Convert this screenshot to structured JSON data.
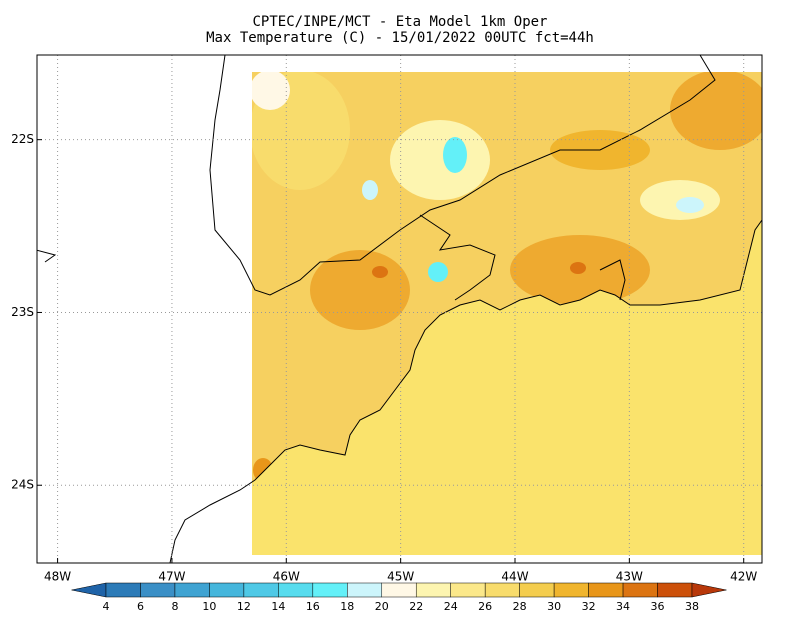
{
  "map": {
    "title": "CPTEC/INPE/MCT -  Eta Model 1km Oper",
    "subtitle": "Max Temperature (C) - 15/01/2022 00UTC fct=44h",
    "xlim": [
      -48.18,
      -41.84
    ],
    "xticks": [
      {
        "value": -48,
        "label": "48W"
      },
      {
        "value": -47,
        "label": "47W"
      },
      {
        "value": -46,
        "label": "46W"
      },
      {
        "value": -45,
        "label": "45W"
      },
      {
        "value": -44,
        "label": "44W"
      },
      {
        "value": -43,
        "label": "43W"
      },
      {
        "value": -42,
        "label": "42W"
      }
    ],
    "ylim": [
      -24.45,
      -21.51
    ],
    "yticks": [
      {
        "value": -22,
        "label": "22S"
      },
      {
        "value": -23,
        "label": "23S"
      },
      {
        "value": -24,
        "label": "24S"
      }
    ],
    "colorbar": {
      "ticks": [
        4,
        6,
        8,
        10,
        12,
        14,
        16,
        18,
        20,
        22,
        24,
        26,
        28,
        30,
        32,
        34,
        36,
        38
      ],
      "colors": [
        "#1f63a8",
        "#2c7bb8",
        "#3a8fc6",
        "#3fa3d2",
        "#45b6dc",
        "#4fc9e6",
        "#57dcee",
        "#63f0f8",
        "#ccf5fb",
        "#fff8e6",
        "#fdf5b0",
        "#fbe88a",
        "#f8dc6c",
        "#f4cd4e",
        "#f0b52e",
        "#e8961a",
        "#dc7412",
        "#cc500a",
        "#b8380a"
      ]
    }
  }
}
